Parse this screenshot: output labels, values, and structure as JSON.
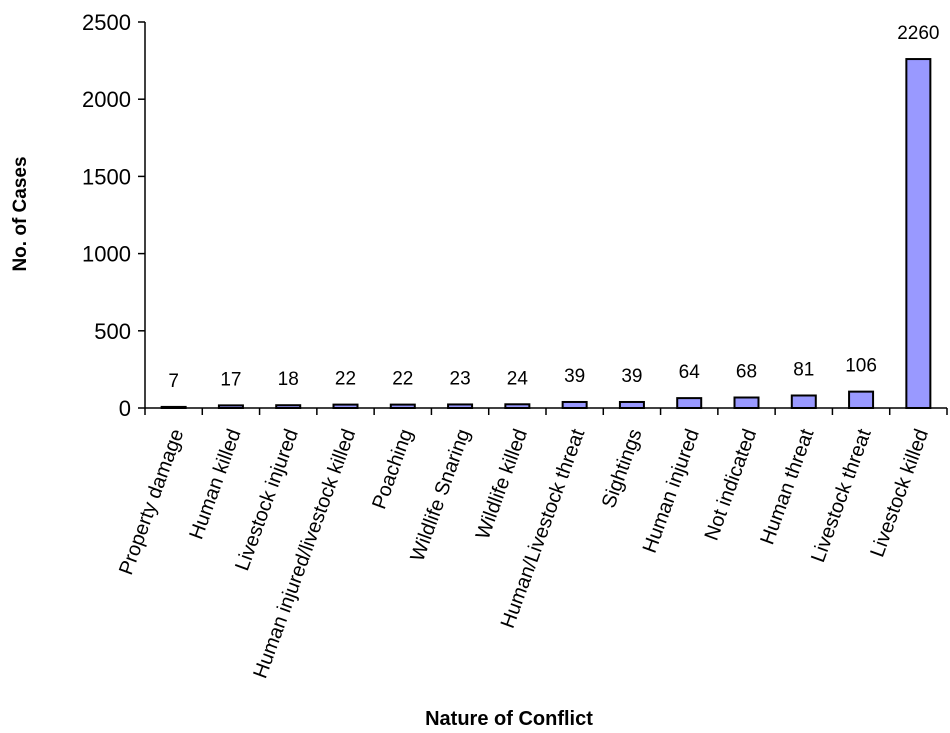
{
  "chart_data": {
    "type": "bar",
    "title": "",
    "xlabel": "Nature of Conflict",
    "ylabel": "No. of Cases",
    "categories": [
      "Property damage",
      "Human killed",
      "Livestock injured",
      "Human injured/livestock killed",
      "Poaching",
      "Wildlife Snaring",
      "Wildlife killed",
      "Human/Livestock threat",
      "Sightings",
      "Human injured",
      "Not indicated",
      "Human threat",
      "Livestock threat",
      "Livestock killed"
    ],
    "values": [
      7,
      17,
      18,
      22,
      22,
      23,
      24,
      39,
      39,
      64,
      68,
      81,
      106,
      2260
    ],
    "data_labels": [
      "7",
      "17",
      "18",
      "22",
      "22",
      "23",
      "24",
      "39",
      "39",
      "64",
      "68",
      "81",
      "106",
      "2260"
    ],
    "yticks": [
      "0",
      "500",
      "1000",
      "1500",
      "2000",
      "2500"
    ],
    "ylim": [
      0,
      2500
    ],
    "grid": false,
    "legend": "none",
    "bar_color": "#9999ff"
  }
}
